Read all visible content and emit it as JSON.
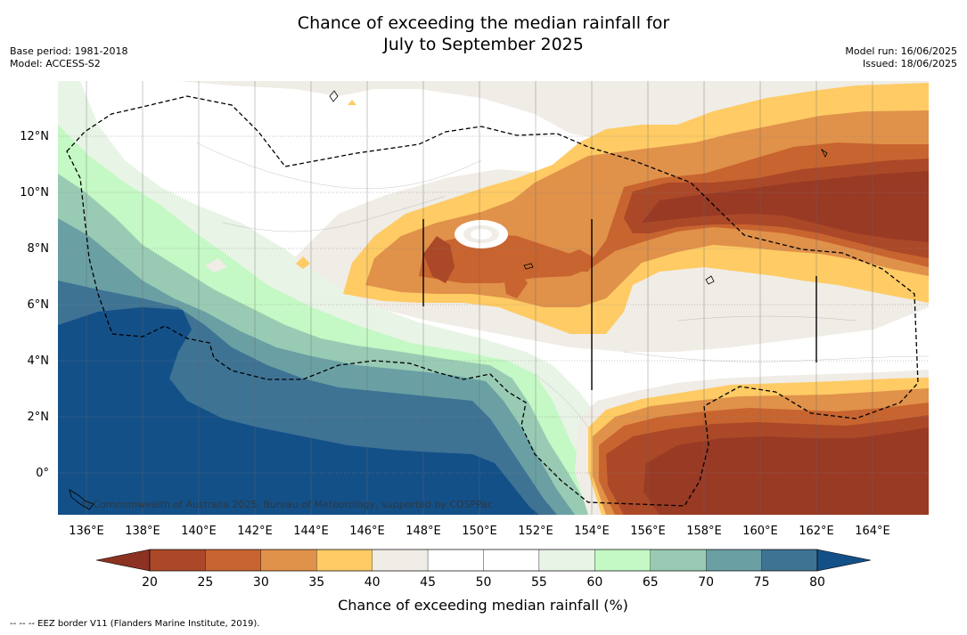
{
  "title_line1": "Chance of exceeding the median rainfall for",
  "title_line2": "July to September 2025",
  "base_period": "Base period: 1981-2018",
  "model": "Model: ACCESS-S2",
  "model_run": "Model run: 16/06/2025",
  "issued": "Issued: 18/06/2025",
  "copyright": "© Commonwealth of Australia 2025, Bureau of Meteorology, supported by COSPPac",
  "footer": "-- -- -- EEZ border V11 (Flanders Marine Institute, 2019).",
  "map": {
    "lon_labels": [
      "136°E",
      "138°E",
      "140°E",
      "142°E",
      "144°E",
      "146°E",
      "148°E",
      "150°E",
      "152°E",
      "154°E",
      "156°E",
      "158°E",
      "160°E",
      "162°E",
      "164°E"
    ],
    "lat_labels": [
      "12°N",
      "10°N",
      "8°N",
      "6°N",
      "4°N",
      "2°N",
      "0°"
    ]
  },
  "colorbar": {
    "label": "Chance of exceeding median rainfall (%)",
    "ticks": [
      "20",
      "25",
      "30",
      "35",
      "40",
      "45",
      "50",
      "55",
      "60",
      "65",
      "70",
      "75",
      "80"
    ],
    "colors": [
      "#ab4828",
      "#c8642f",
      "#e0914a",
      "#fecb64",
      "#f0ece6",
      "#ffffff",
      "#ffffff",
      "#e8f4e6",
      "#c4f8c4",
      "#99cbb4",
      "#6aa0a4",
      "#3e7394"
    ],
    "under_color": "#8c3222",
    "over_color": "#145088"
  },
  "palette": {
    "p20": "#993a25",
    "p25": "#ab4828",
    "p30": "#c8642f",
    "p35": "#e0914a",
    "p40": "#fecb64",
    "p45": "#f0ece6",
    "p55": "#e8f4e6",
    "p60": "#c4f8c4",
    "p65": "#99cbb4",
    "p70": "#6aa0a4",
    "p75": "#3e7394",
    "p80": "#145088"
  }
}
